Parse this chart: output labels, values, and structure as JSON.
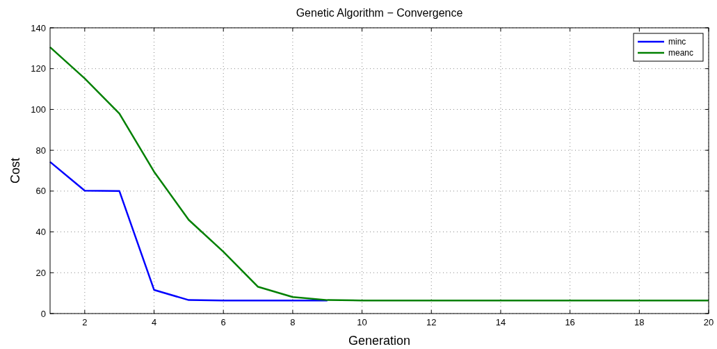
{
  "chart_data": {
    "type": "line",
    "title": "Genetic Algorithm − Convergence",
    "xlabel": "Generation",
    "ylabel": "Cost",
    "x": [
      1,
      2,
      3,
      4,
      5,
      6,
      7,
      8,
      9,
      10,
      11,
      12,
      13,
      14,
      15,
      16,
      17,
      18,
      19,
      20
    ],
    "series": [
      {
        "name": "minc",
        "color": "#0000ff",
        "values": [
          74.3,
          60.2,
          60,
          11.6,
          6.6,
          6.4,
          6.4,
          6.4,
          6.4,
          null,
          null,
          null,
          null,
          null,
          null,
          null,
          null,
          null,
          null,
          null
        ]
      },
      {
        "name": "meanc",
        "color": "#008000",
        "values": [
          130.5,
          115.2,
          98,
          69.5,
          45.9,
          30.3,
          13.1,
          8.1,
          6.6,
          6.4,
          6.4,
          6.4,
          6.4,
          6.4,
          6.4,
          6.4,
          6.4,
          6.4,
          6.4,
          6.4
        ]
      }
    ],
    "xlim": [
      1,
      20
    ],
    "xticks": [
      2,
      4,
      6,
      8,
      10,
      12,
      14,
      16,
      18,
      20
    ],
    "ylim": [
      0,
      140
    ],
    "yticks": [
      0,
      20,
      40,
      60,
      80,
      100,
      120,
      140
    ],
    "grid": true,
    "legend": "top right",
    "line_style": "solid",
    "marker": "none"
  }
}
